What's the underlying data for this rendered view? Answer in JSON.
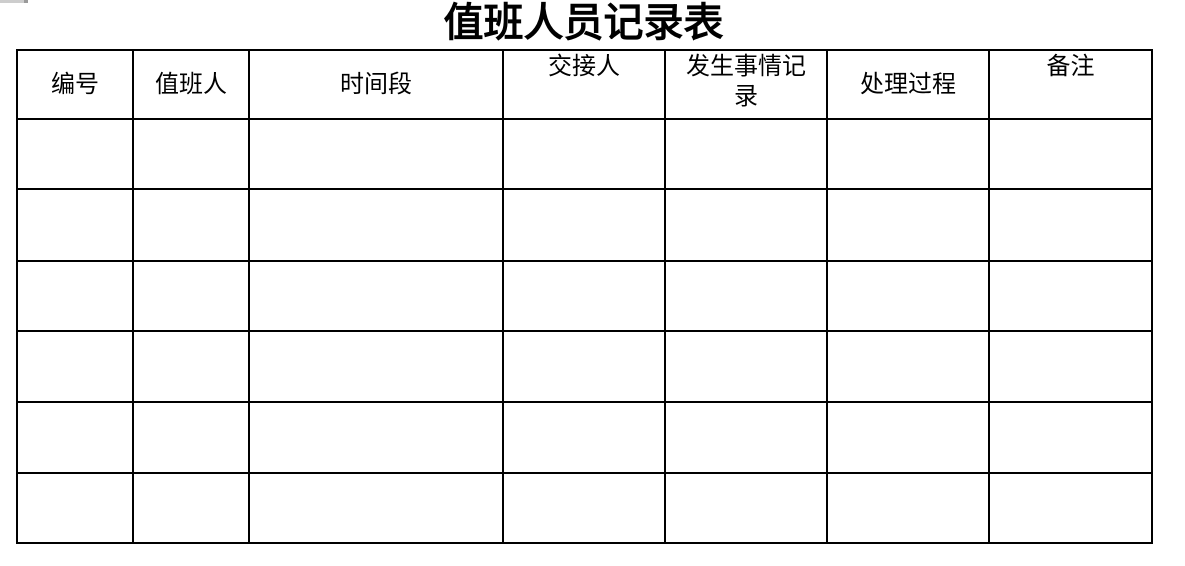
{
  "title": "值班人员记录表",
  "colors": {
    "background": "#ffffff",
    "text": "#000000",
    "table_border": "#000000",
    "corner_artifact": "#cdcdcd",
    "corner_artifact_tip": "#9a9a9a"
  },
  "table": {
    "columns": [
      {
        "label": "编号"
      },
      {
        "label": "值班人"
      },
      {
        "label": "时间段"
      },
      {
        "label": "交接人"
      },
      {
        "label": "发生事情记录"
      },
      {
        "label": "处理过程"
      },
      {
        "label": "备注"
      }
    ],
    "empty_row_count": 6
  }
}
